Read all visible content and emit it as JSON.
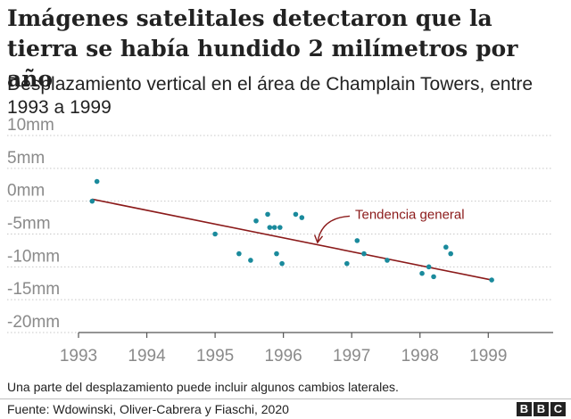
{
  "chart_data": {
    "type": "scatter",
    "title": "Imágenes satelitales detectaron que la tierra se había hundido 2 milímetros por año",
    "subtitle": "Desplazamiento vertical en el área de Champlain Towers, entre 1993 a 1999",
    "xlabel": "",
    "ylabel": "",
    "xlim": [
      1993,
      1999.95
    ],
    "ylim": [
      -20,
      10
    ],
    "x_ticks": [
      1993,
      1994,
      1995,
      1996,
      1997,
      1998,
      1999
    ],
    "x_tick_labels": [
      "1993",
      "1994",
      "1995",
      "1996",
      "1997",
      "1998",
      "1999"
    ],
    "y_ticks": [
      10,
      5,
      0,
      -5,
      -10,
      -15,
      -20
    ],
    "y_tick_labels": [
      "10mm",
      "5mm",
      "0mm",
      "-5mm",
      "-10mm",
      "-15mm",
      "-20mm"
    ],
    "grid": "horizontal dotted",
    "points": [
      {
        "x": 1993.2,
        "y": 0
      },
      {
        "x": 1993.27,
        "y": 3
      },
      {
        "x": 1995.0,
        "y": -5
      },
      {
        "x": 1995.35,
        "y": -8
      },
      {
        "x": 1995.52,
        "y": -9
      },
      {
        "x": 1995.6,
        "y": -3
      },
      {
        "x": 1995.77,
        "y": -2
      },
      {
        "x": 1995.8,
        "y": -4
      },
      {
        "x": 1995.87,
        "y": -4
      },
      {
        "x": 1995.9,
        "y": -8
      },
      {
        "x": 1995.95,
        "y": -4
      },
      {
        "x": 1995.98,
        "y": -9.5
      },
      {
        "x": 1996.18,
        "y": -2
      },
      {
        "x": 1996.27,
        "y": -2.5
      },
      {
        "x": 1996.93,
        "y": -9.5
      },
      {
        "x": 1997.08,
        "y": -6
      },
      {
        "x": 1997.18,
        "y": -8
      },
      {
        "x": 1997.52,
        "y": -9
      },
      {
        "x": 1998.03,
        "y": -11
      },
      {
        "x": 1998.13,
        "y": -10
      },
      {
        "x": 1998.2,
        "y": -11.5
      },
      {
        "x": 1998.38,
        "y": -7
      },
      {
        "x": 1998.45,
        "y": -8
      },
      {
        "x": 1999.05,
        "y": -12
      }
    ],
    "trend": {
      "x": [
        1993.2,
        1999.05
      ],
      "y": [
        0.3,
        -12
      ]
    },
    "annotation": {
      "text": "Tendencia general",
      "x": 1997.05,
      "y": -2,
      "arrow_to_x": 1996.5,
      "arrow_to_y": -6.3
    },
    "colors": {
      "points": "#1a8a9c",
      "trend": "#8b1a1a",
      "annotation": "#8b1a1a",
      "grid": "#c8c8c8",
      "ticks": "#8a8a8a"
    }
  },
  "footer": {
    "note": "Una parte del desplazamiento puede incluir algunos cambios laterales.",
    "source": "Fuente: Wdowinski, Oliver-Cabrera y Fiaschi, 2020",
    "logo_letters": [
      "B",
      "B",
      "C"
    ]
  }
}
